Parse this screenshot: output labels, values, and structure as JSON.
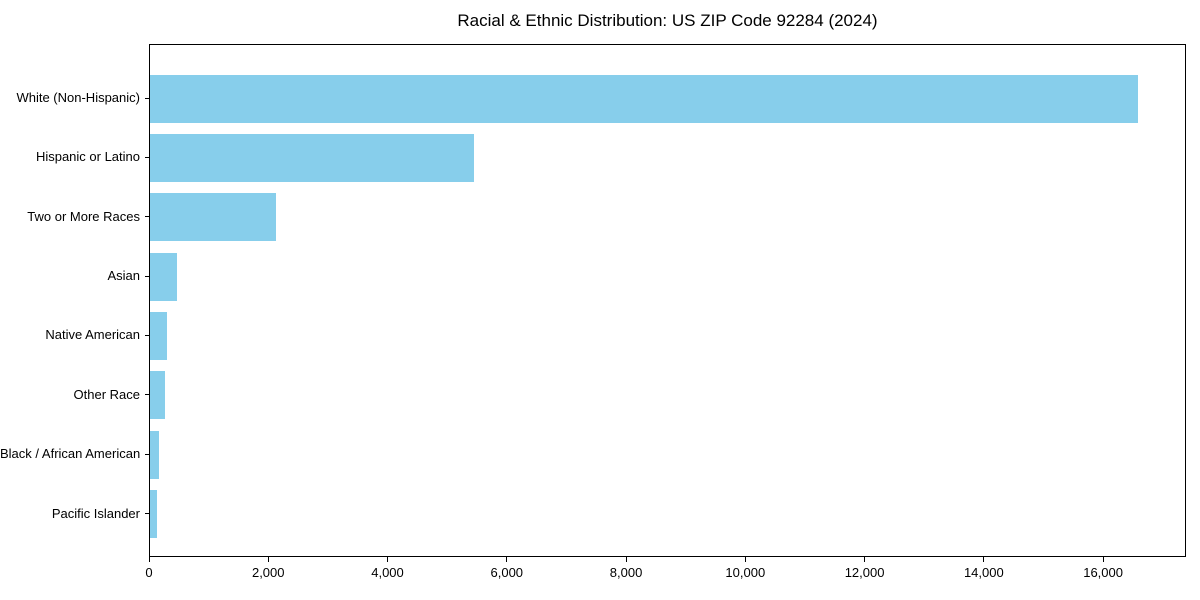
{
  "chart_data": {
    "type": "bar",
    "orientation": "horizontal",
    "title": "Racial & Ethnic Distribution: US ZIP Code 92284 (2024)",
    "categories": [
      "White (Non-Hispanic)",
      "Hispanic or Latino",
      "Two or More Races",
      "Asian",
      "Native American",
      "Other Race",
      "Black / African American",
      "Pacific Islander"
    ],
    "values": [
      16560,
      5430,
      2110,
      450,
      285,
      250,
      150,
      115
    ],
    "xlabel": "",
    "ylabel": "",
    "xlim": [
      0,
      17390
    ],
    "xticks": [
      0,
      2000,
      4000,
      6000,
      8000,
      10000,
      12000,
      14000,
      16000
    ],
    "xtick_labels": [
      "0",
      "2,000",
      "4,000",
      "6,000",
      "8,000",
      "10,000",
      "12,000",
      "14,000",
      "16,000"
    ],
    "bar_color": "#87CEEB",
    "text_color": "#000000",
    "grid": false,
    "legend": null
  }
}
